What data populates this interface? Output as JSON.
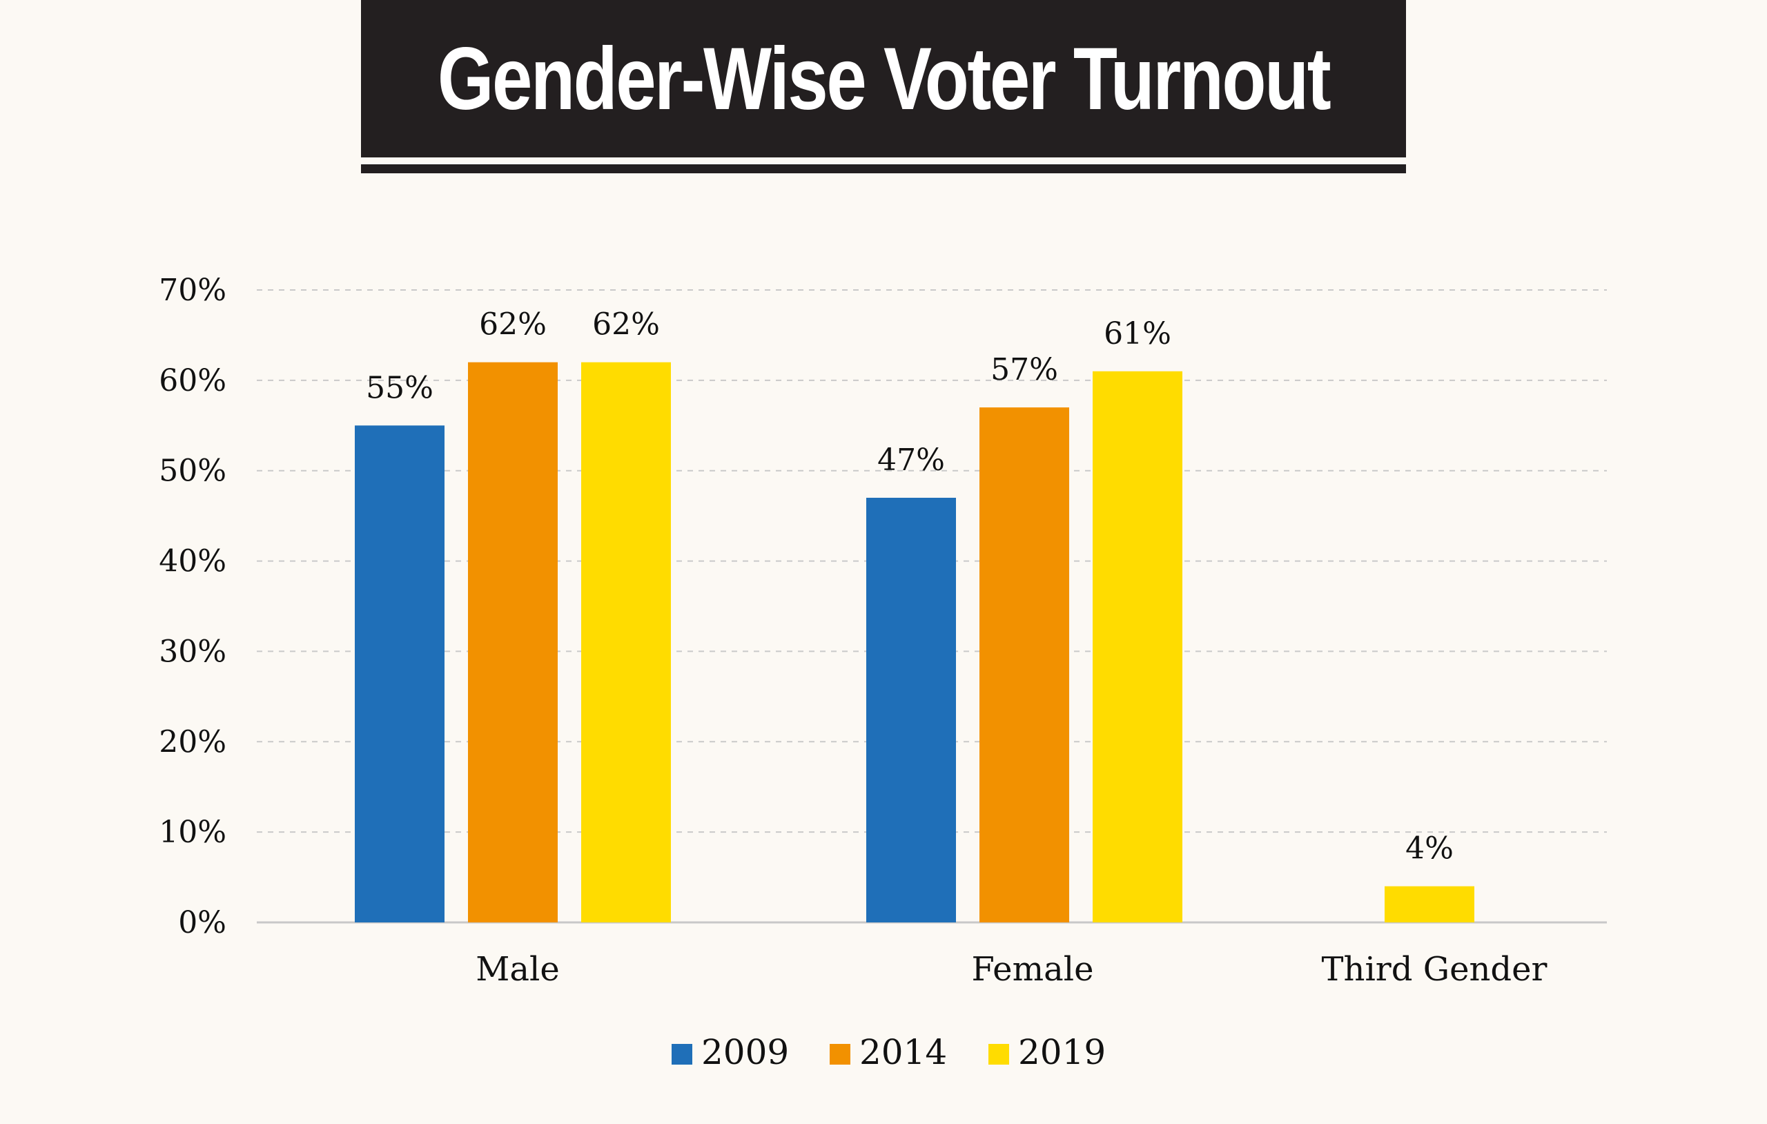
{
  "chart_data": {
    "type": "bar",
    "title": "Gender-Wise Voter Turnout",
    "categories": [
      "Male",
      "Female",
      "Third Gender"
    ],
    "series": [
      {
        "name": "2009",
        "color": "#1f6fb8",
        "values": [
          55,
          47,
          null
        ],
        "labels": [
          "55%",
          "47%",
          ""
        ]
      },
      {
        "name": "2014",
        "color": "#f29100",
        "values": [
          62,
          57,
          null
        ],
        "labels": [
          "62%",
          "57%",
          ""
        ]
      },
      {
        "name": "2019",
        "color": "#ffdc00",
        "values": [
          62,
          61,
          4
        ],
        "labels": [
          "62%",
          "61%",
          "4%"
        ]
      }
    ],
    "ylim": [
      0,
      70
    ],
    "yticks": [
      0,
      10,
      20,
      30,
      40,
      50,
      60,
      70
    ],
    "ytick_labels": [
      "0%",
      "10%",
      "20%",
      "30%",
      "40%",
      "50%",
      "60%",
      "70%"
    ],
    "grid": true,
    "legend": "bottom-center"
  }
}
